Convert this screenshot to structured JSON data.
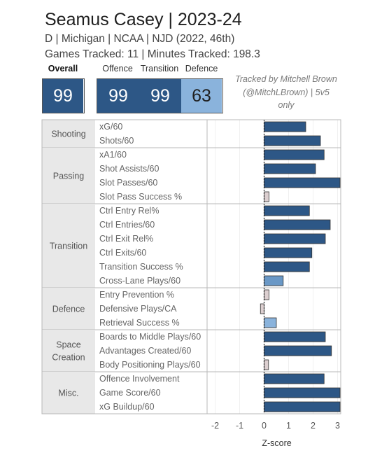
{
  "header": {
    "title": "Seamus Casey | 2023-24",
    "subtitle": "D | Michigan | NCAA | NJD (2022, 46th)",
    "games": "Games Tracked: 11 | Minutes Tracked: 198.3"
  },
  "scores": {
    "overall_label": "Overall",
    "overall": "99",
    "offence_label": "Offence",
    "offence": "99",
    "transition_label": "Transition",
    "transition": "99",
    "defence_label": "Defence",
    "defence": "63"
  },
  "tracked_by": {
    "line1": "Tracked by Mitchell Brown",
    "line2": "(@MitchLBrown) | 5v5",
    "line3": "only"
  },
  "colors": {
    "dark_blue": "#2d5786",
    "light_blue": "#8ab3dc",
    "mid_blue": "#6a98c6",
    "neutral": "#dccfd0",
    "category_bg": "#e8e8e8"
  },
  "chart_data": {
    "type": "bar",
    "orientation": "horizontal",
    "xlabel": "Z-score",
    "xlim": [
      -2.3,
      3.1
    ],
    "xticks": [
      "-2",
      "-1",
      "0",
      "1",
      "2",
      "3"
    ],
    "groups": [
      {
        "name": "Shooting",
        "metrics": [
          {
            "label": "xG/60",
            "value": 1.7,
            "tier": "high"
          },
          {
            "label": "Shots/60",
            "value": 2.3,
            "tier": "high"
          }
        ]
      },
      {
        "name": "Passing",
        "metrics": [
          {
            "label": "xA1/60",
            "value": 2.45,
            "tier": "high"
          },
          {
            "label": "Shot Assists/60",
            "value": 2.1,
            "tier": "high"
          },
          {
            "label": "Slot Passes/60",
            "value": 3.1,
            "tier": "high"
          },
          {
            "label": "Slot Pass Success %",
            "value": 0.2,
            "tier": "neutral"
          }
        ]
      },
      {
        "name": "Transition",
        "metrics": [
          {
            "label": "Ctrl Entry Rel%",
            "value": 1.85,
            "tier": "high"
          },
          {
            "label": "Ctrl Entries/60",
            "value": 2.7,
            "tier": "high"
          },
          {
            "label": "Ctrl Exit Rel%",
            "value": 2.5,
            "tier": "high"
          },
          {
            "label": "Ctrl Exits/60",
            "value": 1.95,
            "tier": "high"
          },
          {
            "label": "Transition Success %",
            "value": 1.85,
            "tier": "high"
          },
          {
            "label": "Cross-Lane Plays/60",
            "value": 0.78,
            "tier": "mid"
          }
        ]
      },
      {
        "name": "Defence",
        "metrics": [
          {
            "label": "Entry Prevention %",
            "value": 0.2,
            "tier": "neutral"
          },
          {
            "label": "Defensive Plays/CA",
            "value": -0.15,
            "tier": "neutral"
          },
          {
            "label": "Retrieval Success %",
            "value": 0.5,
            "tier": "low"
          }
        ]
      },
      {
        "name": "Space Creation",
        "lines": [
          "Space",
          "Creation"
        ],
        "metrics": [
          {
            "label": "Boards to Middle Plays/60",
            "value": 2.5,
            "tier": "high"
          },
          {
            "label": "Advantages Created/60",
            "value": 2.75,
            "tier": "high"
          },
          {
            "label": "Body Positioning Plays/60",
            "value": 0.18,
            "tier": "neutral"
          }
        ]
      },
      {
        "name": "Misc.",
        "metrics": [
          {
            "label": "Offence Involvement",
            "value": 2.45,
            "tier": "high"
          },
          {
            "label": "Game Score/60",
            "value": 3.1,
            "tier": "high"
          },
          {
            "label": "xG Buildup/60",
            "value": 3.1,
            "tier": "high"
          }
        ]
      }
    ]
  }
}
